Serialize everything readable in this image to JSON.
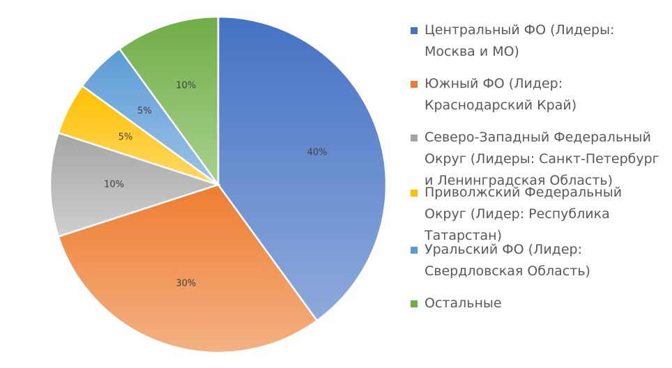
{
  "chart_data": {
    "type": "pie",
    "categories": [
      "Центральный ФО (Лидеры: Москва и МО)",
      "Южный ФО (Лидер: Краснодарский Край)",
      "Северо-Западный Федеральный Округ (Лидеры: Санкт-Петербург и Ленинградская Область)",
      "Приволжский Федеральный Округ (Лидер: Республика Татарстан)",
      "Уральский ФО (Лидер: Свердловская Область)",
      "Остальные"
    ],
    "values": [
      40,
      30,
      10,
      5,
      5,
      10
    ],
    "labels": [
      "40%",
      "30%",
      "10%",
      "5%",
      "5%",
      "10%"
    ],
    "colors": [
      "#4472C4",
      "#ED7D31",
      "#A5A5A5",
      "#FFC000",
      "#5B9BD5",
      "#70AD47"
    ],
    "colors_light": [
      "#8eaadb",
      "#f4b183",
      "#d0d0d0",
      "#ffd966",
      "#9dc3e6",
      "#a9d18e"
    ],
    "legend_position": "right",
    "title": ""
  },
  "legend": {
    "items": [
      {
        "label": "Центральный ФО (Лидеры: Москва и МО)"
      },
      {
        "label": "Южный ФО (Лидер: Краснодарский Край)"
      },
      {
        "label": "Северо-Западный Федеральный Округ (Лидеры: Санкт-Петербург и Ленинградская Область)"
      },
      {
        "label": "Приволжский Федеральный Округ (Лидер: Республика Татарстан)"
      },
      {
        "label": "Уральский ФО (Лидер: Свердловская Область)"
      },
      {
        "label": "Остальные"
      }
    ]
  }
}
